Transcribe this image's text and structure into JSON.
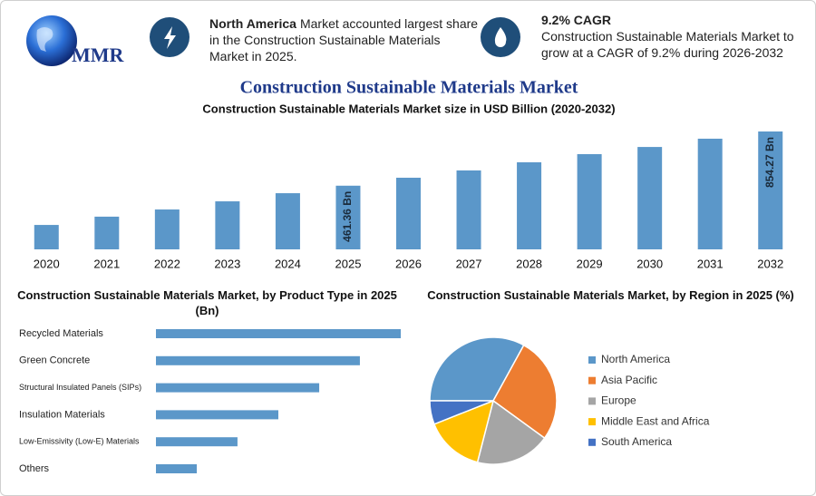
{
  "header": {
    "logo": "MMR",
    "highlights": [
      {
        "bold": "North America",
        "text": "Market accounted largest share in the Construction Sustainable Materials Market in 2025."
      },
      {
        "bold": "9.2% CAGR",
        "text": "Construction Sustainable Materials Market to grow at a CAGR of 9.2% during 2026-2032"
      }
    ]
  },
  "title": "Construction Sustainable Materials Market",
  "chart_data": [
    {
      "type": "bar",
      "title": "Construction Sustainable Materials Market size in USD Billion (2020-2032)",
      "categories": [
        "2020",
        "2021",
        "2022",
        "2023",
        "2024",
        "2025",
        "2026",
        "2027",
        "2028",
        "2029",
        "2030",
        "2031",
        "2032"
      ],
      "values": [
        177,
        237,
        289,
        348,
        407,
        461.36,
        519,
        572,
        631,
        690,
        742,
        802,
        854.27
      ],
      "value_labels": [
        null,
        null,
        null,
        null,
        null,
        "461.36 Bn",
        null,
        null,
        null,
        null,
        null,
        null,
        "854.27 Bn"
      ],
      "color": "#5b97c9"
    },
    {
      "type": "hbar",
      "title": "Construction Sustainable Materials Market, by Product Type in 2025 (Bn)",
      "categories": [
        "Recycled Materials",
        "Green Concrete",
        "Structural Insulated Panels (SIPs)",
        "Insulation Materials",
        "Low-Emissivity (Low-E) Materials",
        "Others"
      ],
      "values": [
        131.8,
        109.8,
        87.9,
        65.9,
        43.9,
        22.0
      ],
      "color": "#5b97c9"
    },
    {
      "type": "pie",
      "title": "Construction Sustainable Materials Market, by Region in 2025 (%)",
      "categories": [
        "North America",
        "Asia Pacific",
        "Europe",
        "Middle East and Africa",
        "South America"
      ],
      "values": [
        33,
        27,
        19,
        15,
        6
      ],
      "colors": [
        "#5b97c9",
        "#ed7d31",
        "#a5a5a5",
        "#ffc000",
        "#4472c4"
      ]
    }
  ]
}
